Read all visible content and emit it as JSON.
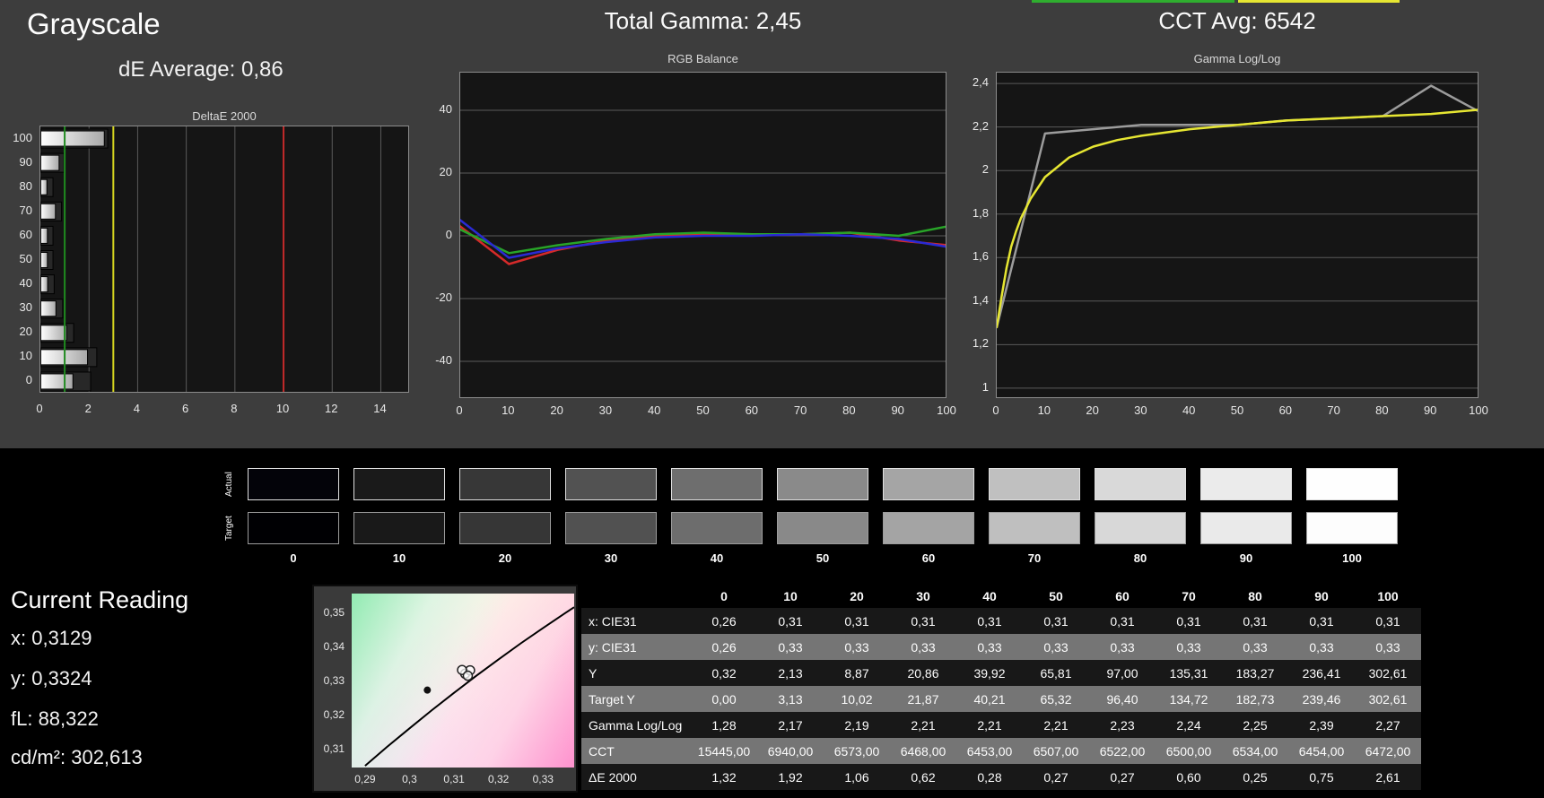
{
  "header": {
    "grayscale_title": "Grayscale",
    "de_average": "dE Average: 0,86",
    "total_gamma": "Total Gamma: 2,45",
    "cct_avg": "CCT Avg: 6542"
  },
  "reading": {
    "title": "Current Reading",
    "lines": [
      "x: 0,3129",
      "y: 0,3324",
      "fL: 88,322",
      "cd/m²: 302,613"
    ]
  },
  "swatches": {
    "row_labels": [
      "Actual",
      "Target"
    ],
    "levels": [
      "0",
      "10",
      "20",
      "30",
      "40",
      "50",
      "60",
      "70",
      "80",
      "90",
      "100"
    ],
    "actual_colors": [
      "#030309",
      "#1a1a1a",
      "#373737",
      "#525252",
      "#6e6e6e",
      "#8a8a8a",
      "#a5a5a5",
      "#c0c0c0",
      "#d9d9d9",
      "#ebebeb",
      "#fefefe"
    ],
    "target_colors": [
      "#000003",
      "#191919",
      "#363636",
      "#515151",
      "#6d6d6d",
      "#898989",
      "#a4a4a4",
      "#bfbfbf",
      "#d8d8d8",
      "#eaeaea",
      "#fdfdfd"
    ]
  },
  "table": {
    "header": [
      "",
      "0",
      "10",
      "20",
      "30",
      "40",
      "50",
      "60",
      "70",
      "80",
      "90",
      "100"
    ],
    "rows": [
      {
        "label": "x: CIE31",
        "values": [
          "0,26",
          "0,31",
          "0,31",
          "0,31",
          "0,31",
          "0,31",
          "0,31",
          "0,31",
          "0,31",
          "0,31",
          "0,31"
        ]
      },
      {
        "label": "y: CIE31",
        "values": [
          "0,26",
          "0,33",
          "0,33",
          "0,33",
          "0,33",
          "0,33",
          "0,33",
          "0,33",
          "0,33",
          "0,33",
          "0,33"
        ]
      },
      {
        "label": "Y",
        "values": [
          "0,32",
          "2,13",
          "8,87",
          "20,86",
          "39,92",
          "65,81",
          "97,00",
          "135,31",
          "183,27",
          "236,41",
          "302,61"
        ]
      },
      {
        "label": "Target Y",
        "values": [
          "0,00",
          "3,13",
          "10,02",
          "21,87",
          "40,21",
          "65,32",
          "96,40",
          "134,72",
          "182,73",
          "239,46",
          "302,61"
        ]
      },
      {
        "label": "Gamma Log/Log",
        "values": [
          "1,28",
          "2,17",
          "2,19",
          "2,21",
          "2,21",
          "2,21",
          "2,23",
          "2,24",
          "2,25",
          "2,39",
          "2,27"
        ]
      },
      {
        "label": "CCT",
        "values": [
          "15445,00",
          "6940,00",
          "6573,00",
          "6468,00",
          "6453,00",
          "6507,00",
          "6522,00",
          "6500,00",
          "6534,00",
          "6454,00",
          "6472,00"
        ]
      },
      {
        "label": "ΔE 2000",
        "values": [
          "1,32",
          "1,92",
          "1,06",
          "0,62",
          "0,28",
          "0,27",
          "0,27",
          "0,60",
          "0,25",
          "0,75",
          "2,61"
        ]
      }
    ]
  },
  "chart_data": [
    {
      "id": "deltae",
      "type": "bar",
      "orientation": "horizontal",
      "title": "DeltaE 2000",
      "categories": [
        100,
        90,
        80,
        70,
        60,
        50,
        40,
        30,
        20,
        10,
        0
      ],
      "values": [
        2.61,
        0.75,
        0.25,
        0.6,
        0.27,
        0.27,
        0.28,
        0.62,
        1.06,
        1.92,
        1.32
      ],
      "shadow_values": [
        2.75,
        0.95,
        0.5,
        0.85,
        0.5,
        0.5,
        0.55,
        0.9,
        1.35,
        2.3,
        2.05
      ],
      "xlim": [
        0,
        15.2
      ],
      "xticks": [
        0,
        2,
        4,
        6,
        8,
        10,
        12,
        14
      ],
      "ref_lines": [
        {
          "name": "good",
          "value": 1,
          "color": "#1f8a1f"
        },
        {
          "name": "warn",
          "value": 3,
          "color": "#d6d620"
        },
        {
          "name": "bad",
          "value": 10,
          "color": "#c22a2a"
        }
      ],
      "grid": "vertical"
    },
    {
      "id": "rgb-balance",
      "type": "line",
      "title": "RGB Balance",
      "x": [
        0,
        10,
        20,
        30,
        40,
        50,
        60,
        70,
        80,
        90,
        100
      ],
      "series": [
        {
          "name": "Red",
          "color": "#d42a2a",
          "values": [
            3,
            -9,
            -4.5,
            -1.5,
            0,
            0.5,
            0.5,
            0.5,
            1,
            -1.5,
            -3
          ]
        },
        {
          "name": "Green",
          "color": "#28a428",
          "values": [
            2,
            -5.5,
            -3,
            -1,
            0.5,
            1,
            0.5,
            0.5,
            1,
            0,
            3
          ]
        },
        {
          "name": "Blue",
          "color": "#2a2ad4",
          "values": [
            5,
            -7,
            -4,
            -2,
            -0.5,
            0,
            0,
            0.5,
            0,
            -1,
            -3.5
          ]
        }
      ],
      "xlim": [
        0,
        100
      ],
      "ylim": [
        -52,
        52
      ],
      "xticks": [
        0,
        10,
        20,
        30,
        40,
        50,
        60,
        70,
        80,
        90,
        100
      ],
      "yticks": [
        40,
        20,
        0,
        -20,
        -40
      ],
      "grid": "horizontal"
    },
    {
      "id": "gamma-loglog",
      "type": "line",
      "title": "Gamma Log/Log",
      "x": [
        0,
        10,
        20,
        30,
        40,
        50,
        60,
        70,
        80,
        90,
        100
      ],
      "series": [
        {
          "name": "Measured",
          "color": "#9c9c9c",
          "values": [
            1.28,
            2.17,
            2.19,
            2.21,
            2.21,
            2.21,
            2.23,
            2.24,
            2.25,
            2.39,
            2.27
          ]
        },
        {
          "name": "Target",
          "color": "#e6e632",
          "x": [
            0,
            1,
            2,
            3,
            4,
            5,
            7,
            10,
            15,
            20,
            25,
            30,
            40,
            50,
            60,
            70,
            80,
            90,
            100
          ],
          "values": [
            1.28,
            1.42,
            1.55,
            1.65,
            1.72,
            1.78,
            1.87,
            1.97,
            2.06,
            2.11,
            2.14,
            2.16,
            2.19,
            2.21,
            2.23,
            2.24,
            2.25,
            2.26,
            2.28
          ]
        }
      ],
      "xlim": [
        0,
        100
      ],
      "ylim": [
        0.95,
        2.45
      ],
      "xticks": [
        0,
        10,
        20,
        30,
        40,
        50,
        60,
        70,
        80,
        90,
        100
      ],
      "yticks": [
        2.4,
        2.2,
        2.0,
        1.8,
        1.6,
        1.4,
        1.2,
        1.0
      ],
      "ytick_labels": [
        "2,4",
        "2,2",
        "2",
        "1,8",
        "1,6",
        "1,4",
        "1,2",
        "1"
      ],
      "grid": "horizontal"
    },
    {
      "id": "cie-chromaticity",
      "type": "scatter",
      "title": "CIE xy chromaticity",
      "xlim": [
        0.287,
        0.337
      ],
      "ylim": [
        0.3045,
        0.3555
      ],
      "xticks": [
        0.29,
        0.3,
        0.31,
        0.32,
        0.33
      ],
      "xtick_labels": [
        "0,29",
        "0,3",
        "0,31",
        "0,32",
        "0,33"
      ],
      "yticks": [
        0.35,
        0.34,
        0.33,
        0.32,
        0.31
      ],
      "ytick_labels": [
        "0,35",
        "0,34",
        "0,33",
        "0,32",
        "0,31"
      ],
      "locus": [
        [
          0.29,
          0.305
        ],
        [
          0.295,
          0.3106
        ],
        [
          0.3,
          0.316
        ],
        [
          0.305,
          0.3213
        ],
        [
          0.31,
          0.3264
        ],
        [
          0.315,
          0.3314
        ],
        [
          0.32,
          0.3362
        ],
        [
          0.325,
          0.3409
        ],
        [
          0.33,
          0.3454
        ],
        [
          0.335,
          0.3498
        ],
        [
          0.337,
          0.3515
        ]
      ],
      "points": [
        {
          "x": 0.304,
          "y": 0.3272,
          "style": "filled"
        },
        {
          "x": 0.3125,
          "y": 0.332,
          "style": "open"
        },
        {
          "x": 0.3136,
          "y": 0.333,
          "style": "open"
        },
        {
          "x": 0.3118,
          "y": 0.3331,
          "style": "open"
        },
        {
          "x": 0.3131,
          "y": 0.3314,
          "style": "open"
        }
      ]
    }
  ]
}
